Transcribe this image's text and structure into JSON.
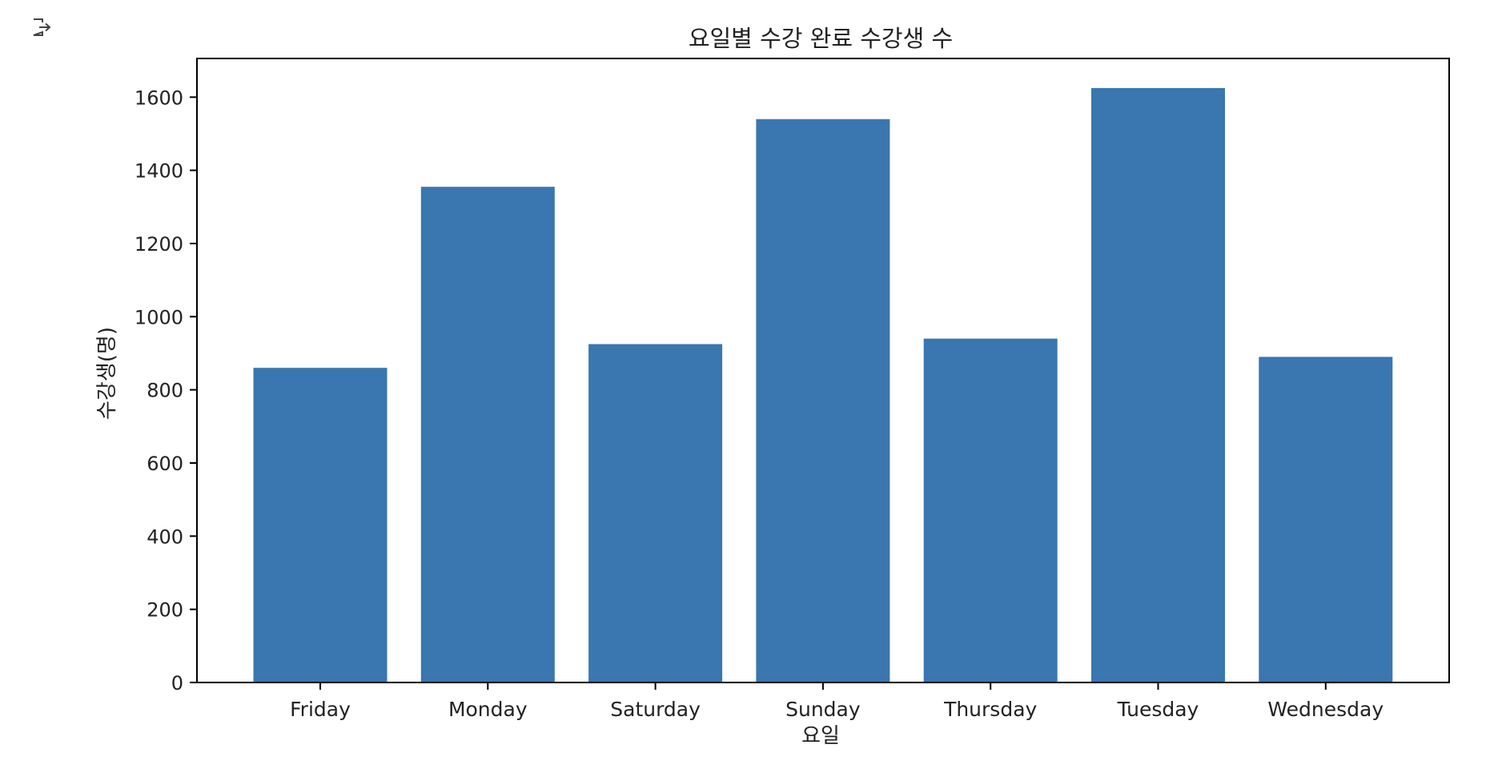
{
  "output_cell": {
    "icon": "output-arrow-icon"
  },
  "chart_data": {
    "type": "bar",
    "title": "요일별 수강 완료 수강생 수",
    "xlabel": "요일",
    "ylabel": "수강생(명)",
    "categories": [
      "Friday",
      "Monday",
      "Saturday",
      "Sunday",
      "Thursday",
      "Tuesday",
      "Wednesday"
    ],
    "values": [
      860,
      1355,
      925,
      1540,
      940,
      1625,
      890
    ],
    "ylim": [
      0,
      1700
    ],
    "yticks": [
      0,
      200,
      400,
      600,
      800,
      1000,
      1200,
      1400,
      1600
    ],
    "ytick_labels": [
      "0",
      "200",
      "400",
      "600",
      "800",
      "1000",
      "1200",
      "1400",
      "1600"
    ],
    "bar_color": "#3a76af",
    "grid": false,
    "legend": "none"
  }
}
